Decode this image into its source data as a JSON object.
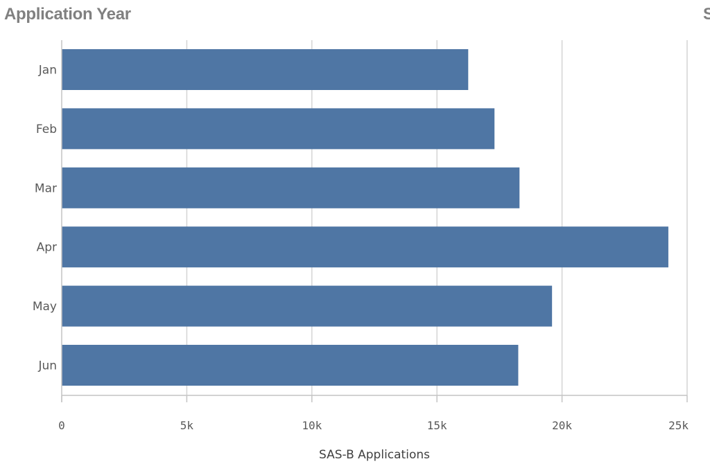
{
  "header": {
    "title": "Application Year",
    "title_cut": "S"
  },
  "colors": {
    "bar": "#4f76a4",
    "grid": "#d4d4d4",
    "axis": "#c4c4c4"
  },
  "chart_data": {
    "type": "bar",
    "orientation": "horizontal",
    "categories": [
      "Jan",
      "Feb",
      "Mar",
      "Apr",
      "May",
      "Jun"
    ],
    "values": [
      16250,
      17300,
      18300,
      24250,
      19600,
      18250
    ],
    "xlabel": "SAS-B Applications",
    "ylabel": "",
    "xlim": [
      0,
      25000
    ],
    "xticks": [
      0,
      5000,
      10000,
      15000,
      20000,
      25000
    ],
    "xtick_labels": [
      "0",
      "5k",
      "10k",
      "15k",
      "20k",
      "25k"
    ],
    "grid": true
  }
}
